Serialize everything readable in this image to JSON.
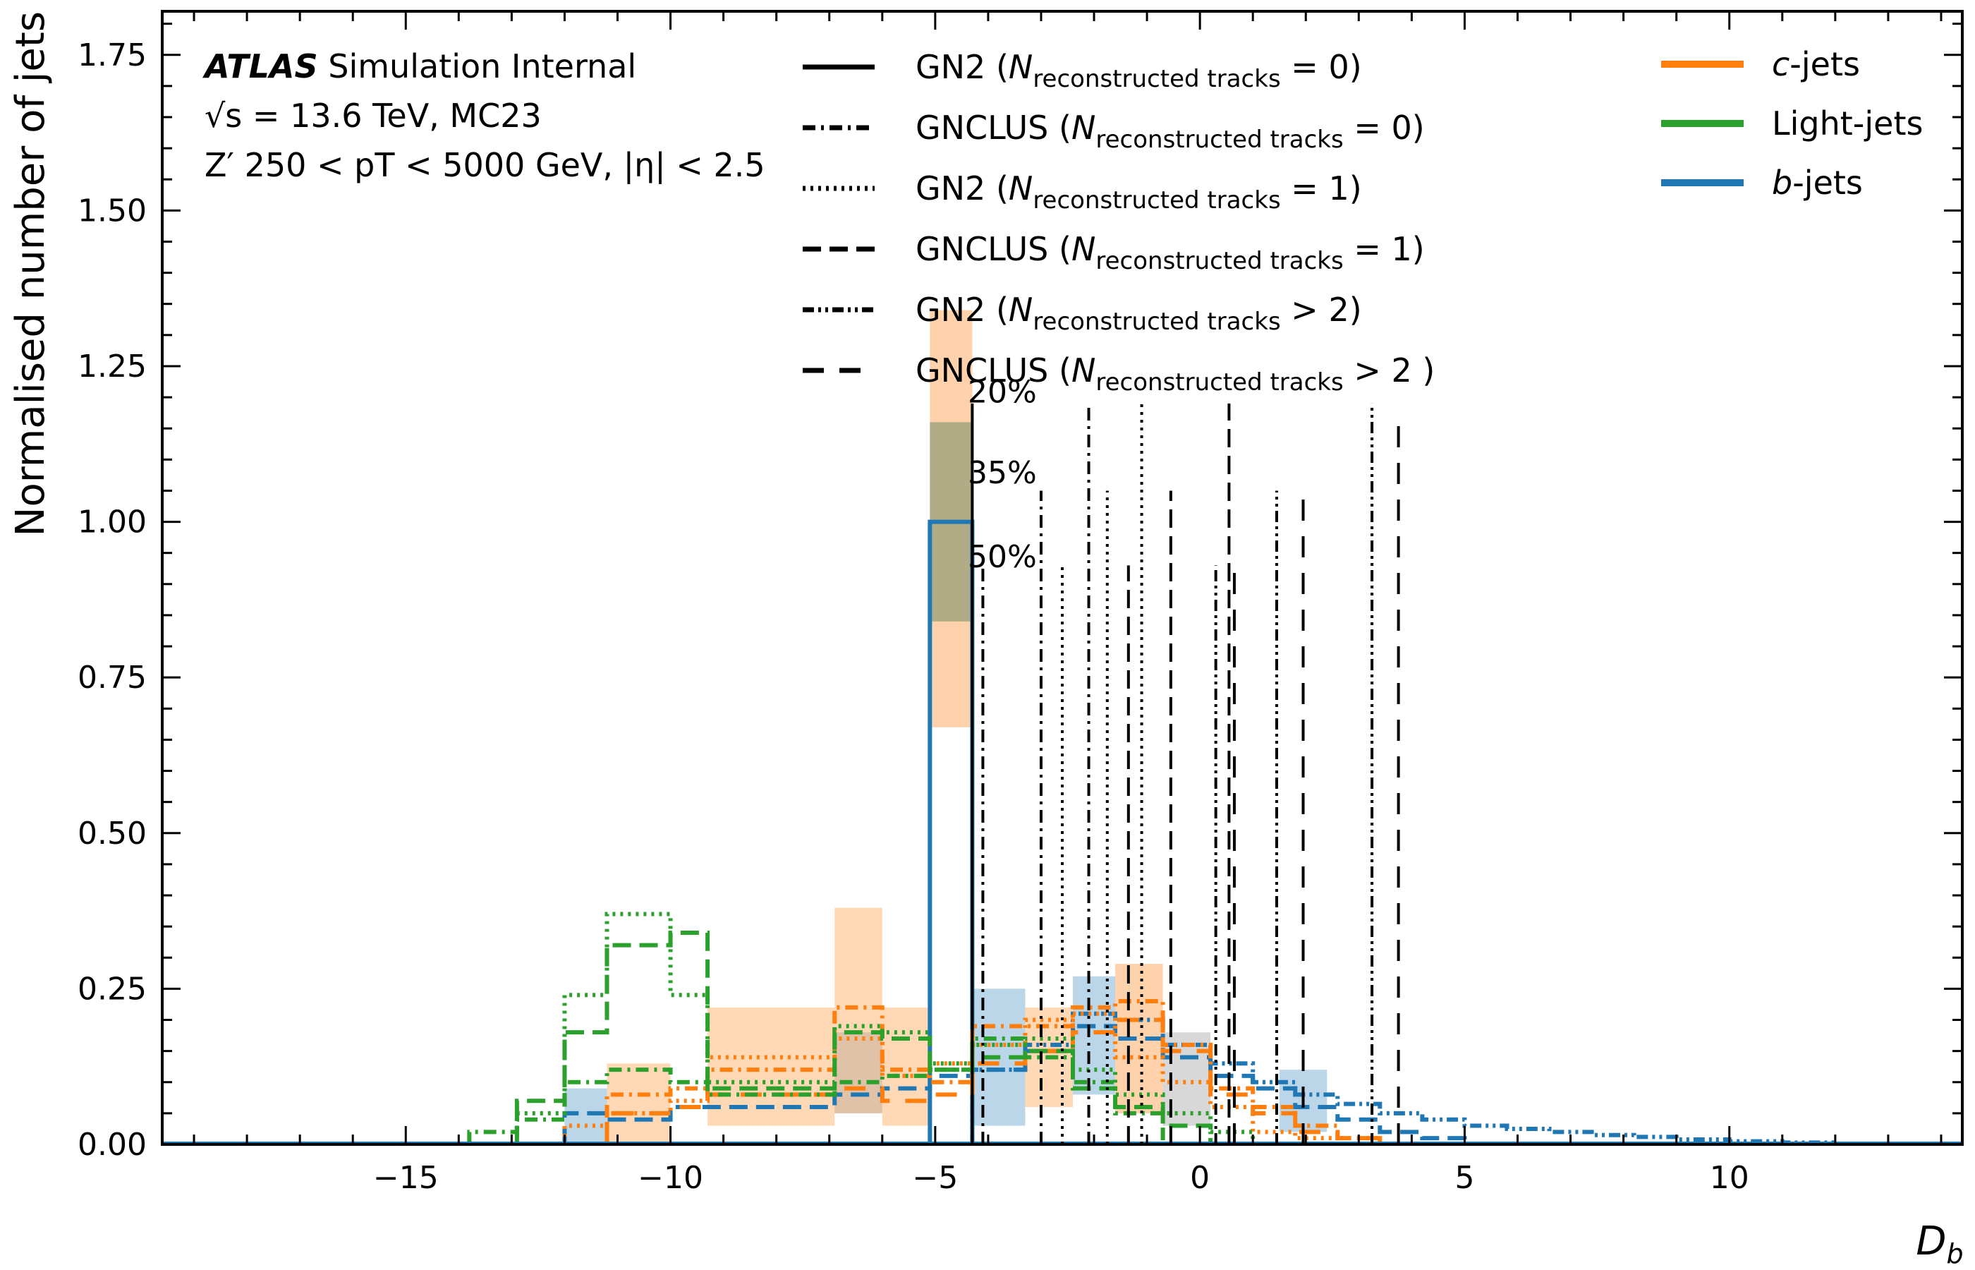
{
  "chart_data": {
    "type": "histogram",
    "xlabel": "D_b",
    "ylabel": "Normalised number of jets",
    "xlim": [
      -19.6,
      14.4
    ],
    "ylim": [
      0,
      1.82
    ],
    "xticks": [
      -15,
      -10,
      -5,
      0,
      5,
      10
    ],
    "yticks": [
      0.0,
      0.25,
      0.5,
      0.75,
      1.0,
      1.25,
      1.5,
      1.75
    ],
    "atlas_label": {
      "brand": "ATLAS",
      "line1_rest": "Simulation Internal",
      "line2": "√s = 13.6 TeV, MC23",
      "line3": "Z′ 250 < pT < 5000 GeV, |η| < 2.5"
    },
    "style_legend": [
      {
        "text_pre": "GN2 (",
        "var": "N",
        "sub": "reconstructed tracks",
        "text_post": " = 0)",
        "dash": "solid"
      },
      {
        "text_pre": "GNCLUS (",
        "var": "N",
        "sub": "reconstructed tracks",
        "text_post": " = 0)",
        "dash": "dashdot"
      },
      {
        "text_pre": "GN2 (",
        "var": "N",
        "sub": "reconstructed tracks",
        "text_post": " = 1)",
        "dash": "dotted"
      },
      {
        "text_pre": "GNCLUS (",
        "var": "N",
        "sub": "reconstructed tracks",
        "text_post": " = 1)",
        "dash": "dashed"
      },
      {
        "text_pre": "GN2 (",
        "var": "N",
        "sub": "reconstructed tracks",
        "text_post": " > 2)",
        "dash": "dashdotdot"
      },
      {
        "text_pre": "GNCLUS (",
        "var": "N",
        "sub": "reconstructed tracks",
        "text_post": " > 2 )",
        "dash": "loosedash"
      }
    ],
    "flavour_legend": [
      {
        "italic": "c",
        "rest": "-jets",
        "color": "#ff7f0e"
      },
      {
        "italic": "",
        "rest": "Light-jets",
        "color": "#2ca02c"
      },
      {
        "italic": "b",
        "rest": "-jets",
        "color": "#1f77b4"
      }
    ],
    "wp_labels": [
      {
        "text": "20%",
        "y": 1.21
      },
      {
        "text": "35%",
        "y": 1.08
      },
      {
        "text": "50%",
        "y": 0.945
      }
    ],
    "wp_lines": [
      {
        "x": -4.3,
        "top": 1.19,
        "dash": "solid"
      },
      {
        "x": -4.1,
        "top": 0.93,
        "dash": "dashdot"
      },
      {
        "x": -3.0,
        "top": 1.05,
        "dash": "dashdot"
      },
      {
        "x": -2.6,
        "top": 0.93,
        "dash": "dotted"
      },
      {
        "x": -2.1,
        "top": 1.19,
        "dash": "dashdot"
      },
      {
        "x": -1.75,
        "top": 1.05,
        "dash": "dotted"
      },
      {
        "x": -1.35,
        "top": 0.93,
        "dash": "dashed"
      },
      {
        "x": -1.1,
        "top": 1.19,
        "dash": "dotted"
      },
      {
        "x": -0.55,
        "top": 1.05,
        "dash": "dashed"
      },
      {
        "x": 0.3,
        "top": 0.93,
        "dash": "dashdotdot"
      },
      {
        "x": 0.55,
        "top": 1.19,
        "dash": "dashed"
      },
      {
        "x": 0.65,
        "top": 0.93,
        "dash": "loosedash"
      },
      {
        "x": 1.45,
        "top": 1.05,
        "dash": "dashdotdot"
      },
      {
        "x": 1.95,
        "top": 1.05,
        "dash": "loosedash"
      },
      {
        "x": 3.25,
        "top": 1.19,
        "dash": "dashdotdot"
      },
      {
        "x": 3.75,
        "top": 1.17,
        "dash": "loosedash"
      }
    ],
    "bands": [
      {
        "x0": -5.1,
        "x1": -4.3,
        "y0": 0.67,
        "y1": 1.34,
        "color": "#ff7f0e",
        "alpha": 0.35
      },
      {
        "x0": -5.1,
        "x1": -4.3,
        "y0": 0.84,
        "y1": 1.16,
        "color": "#2ca02c",
        "alpha": 0.25
      },
      {
        "x0": -5.1,
        "x1": -4.3,
        "y0": 0.84,
        "y1": 1.16,
        "color": "#7f7f7f",
        "alpha": 0.35
      },
      {
        "x0": -9.3,
        "x1": -6.9,
        "y0": 0.03,
        "y1": 0.22,
        "color": "#ff7f0e",
        "alpha": 0.3
      },
      {
        "x0": -6.9,
        "x1": -6.0,
        "y0": 0.05,
        "y1": 0.38,
        "color": "#ff7f0e",
        "alpha": 0.3
      },
      {
        "x0": -6.0,
        "x1": -5.1,
        "y0": 0.03,
        "y1": 0.22,
        "color": "#ff7f0e",
        "alpha": 0.3
      },
      {
        "x0": -11.2,
        "x1": -10.0,
        "y0": 0.0,
        "y1": 0.13,
        "color": "#ff7f0e",
        "alpha": 0.3
      },
      {
        "x0": -12.0,
        "x1": -11.2,
        "y0": 0.0,
        "y1": 0.09,
        "color": "#1f77b4",
        "alpha": 0.3
      },
      {
        "x0": -4.3,
        "x1": -3.3,
        "y0": 0.03,
        "y1": 0.25,
        "color": "#1f77b4",
        "alpha": 0.3
      },
      {
        "x0": -2.4,
        "x1": -1.6,
        "y0": 0.08,
        "y1": 0.27,
        "color": "#1f77b4",
        "alpha": 0.3
      },
      {
        "x0": -3.3,
        "x1": -2.4,
        "y0": 0.06,
        "y1": 0.22,
        "color": "#ff7f0e",
        "alpha": 0.3
      },
      {
        "x0": -1.6,
        "x1": -0.7,
        "y0": 0.05,
        "y1": 0.29,
        "color": "#ff7f0e",
        "alpha": 0.35
      },
      {
        "x0": -0.7,
        "x1": 0.2,
        "y0": 0.03,
        "y1": 0.18,
        "color": "#7f7f7f",
        "alpha": 0.3
      },
      {
        "x0": 1.5,
        "x1": 2.4,
        "y0": 0.02,
        "y1": 0.12,
        "color": "#1f77b4",
        "alpha": 0.3
      },
      {
        "x0": -6.9,
        "x1": -6.0,
        "y0": 0.05,
        "y1": 0.18,
        "color": "#7f7f7f",
        "alpha": 0.25
      }
    ],
    "series": [
      {
        "name": "b-jets GN2 (N reconstructed tracks = 0)",
        "color": "#1f77b4",
        "dash": "solid",
        "x_edges": [
          -5.1,
          -4.3
        ],
        "values": [
          1.0
        ]
      },
      {
        "name": "b-jets GN2 (N reconstructed tracks > 2)",
        "color": "#1f77b4",
        "dash": "dashdotdot",
        "x_edges": [
          -4.3,
          -3.3,
          -2.4,
          -1.6,
          -0.7,
          0.2,
          1.0,
          1.8,
          2.6,
          3.4,
          4.2,
          5.0,
          5.8,
          6.6,
          7.4,
          8.2,
          9.0,
          10.0,
          11.0,
          12.0
        ],
        "values": [
          0.12,
          0.16,
          0.21,
          0.2,
          0.16,
          0.13,
          0.1,
          0.08,
          0.065,
          0.05,
          0.04,
          0.03,
          0.025,
          0.02,
          0.015,
          0.012,
          0.008,
          0.005,
          0.003
        ]
      },
      {
        "name": "b-jets GNCLUS (N reconstructed tracks = 1)",
        "color": "#1f77b4",
        "dash": "dashed",
        "x_edges": [
          -12.0,
          -11.2,
          -10.0,
          -9.3,
          -6.9,
          -6.0,
          -5.1,
          -4.3,
          -3.3,
          -2.4,
          -1.6,
          -0.7,
          0.2,
          1.0,
          1.8,
          2.6,
          3.4,
          4.2,
          5.0
        ],
        "values": [
          0.05,
          0.04,
          0.06,
          0.06,
          0.08,
          0.09,
          0.11,
          0.12,
          0.15,
          0.19,
          0.17,
          0.14,
          0.11,
          0.09,
          0.06,
          0.04,
          0.02,
          0.01
        ]
      },
      {
        "name": "c-jets GNCLUS (N reconstructed tracks = 0)",
        "color": "#ff7f0e",
        "dash": "dashdot",
        "x_edges": [
          -11.2,
          -10.0,
          -9.3,
          -6.9,
          -6.0,
          -5.1,
          -4.3,
          -3.3,
          -2.4,
          -1.6,
          -0.7,
          0.2,
          1.0,
          1.8,
          2.6,
          3.4
        ],
        "values": [
          0.08,
          0.09,
          0.12,
          0.22,
          0.12,
          0.1,
          0.19,
          0.19,
          0.22,
          0.23,
          0.16,
          0.09,
          0.06,
          0.03,
          0.01
        ]
      },
      {
        "name": "c-jets GN2 (N reconstructed tracks = 1)",
        "color": "#ff7f0e",
        "dash": "dotted",
        "x_edges": [
          -12.0,
          -11.2,
          -10.0,
          -9.3,
          -6.9,
          -6.0,
          -5.1,
          -4.3,
          -3.3,
          -2.4,
          -1.6,
          -0.7,
          0.2,
          1.0,
          1.8,
          2.6
        ],
        "values": [
          0.03,
          0.05,
          0.07,
          0.14,
          0.17,
          0.11,
          0.13,
          0.16,
          0.2,
          0.21,
          0.14,
          0.1,
          0.06,
          0.02,
          0.01
        ]
      },
      {
        "name": "c-jets GNCLUS (N reconstructed tracks > 2)",
        "color": "#ff7f0e",
        "dash": "loosedash",
        "x_edges": [
          -11.2,
          -10.0,
          -9.3,
          -6.9,
          -6.0,
          -5.1,
          -4.3,
          -3.3,
          -2.4,
          -1.6,
          -0.7,
          0.2,
          1.0,
          1.8,
          2.6,
          3.4
        ],
        "values": [
          0.05,
          0.06,
          0.08,
          0.09,
          0.07,
          0.08,
          0.13,
          0.15,
          0.18,
          0.2,
          0.15,
          0.08,
          0.05,
          0.02,
          0.01
        ]
      },
      {
        "name": "Light-jets GN2 (N reconstructed tracks = 1)",
        "color": "#2ca02c",
        "dash": "dotted",
        "x_edges": [
          -12.9,
          -12.0,
          -11.2,
          -10.0,
          -9.3,
          -6.9,
          -6.0,
          -5.1,
          -4.3,
          -3.3,
          -2.4,
          -1.6,
          -0.7,
          0.2,
          1.0
        ],
        "values": [
          0.05,
          0.24,
          0.37,
          0.24,
          0.1,
          0.19,
          0.18,
          0.13,
          0.16,
          0.17,
          0.12,
          0.08,
          0.05,
          0.02
        ]
      },
      {
        "name": "Light-jets GNCLUS (N reconstructed tracks = 1)",
        "color": "#2ca02c",
        "dash": "dashed",
        "x_edges": [
          -12.9,
          -12.0,
          -11.2,
          -10.0,
          -9.3,
          -6.9,
          -6.0,
          -5.1,
          -4.3,
          -3.3,
          -2.4,
          -1.6,
          -0.7,
          0.2
        ],
        "values": [
          0.07,
          0.18,
          0.32,
          0.34,
          0.09,
          0.18,
          0.17,
          0.12,
          0.14,
          0.15,
          0.09,
          0.06,
          0.03
        ]
      },
      {
        "name": "Light-jets GNCLUS (N reconstructed tracks = 0)",
        "color": "#2ca02c",
        "dash": "dashdot",
        "x_edges": [
          -13.8,
          -12.9,
          -12.0,
          -11.2,
          -10.0,
          -9.3,
          -6.9,
          -6.0,
          -5.1,
          -4.3,
          -3.3,
          -2.4,
          -1.6,
          -0.7
        ],
        "values": [
          0.02,
          0.04,
          0.1,
          0.12,
          0.1,
          0.08,
          0.1,
          0.11,
          0.12,
          0.17,
          0.14,
          0.1,
          0.05
        ]
      }
    ]
  }
}
